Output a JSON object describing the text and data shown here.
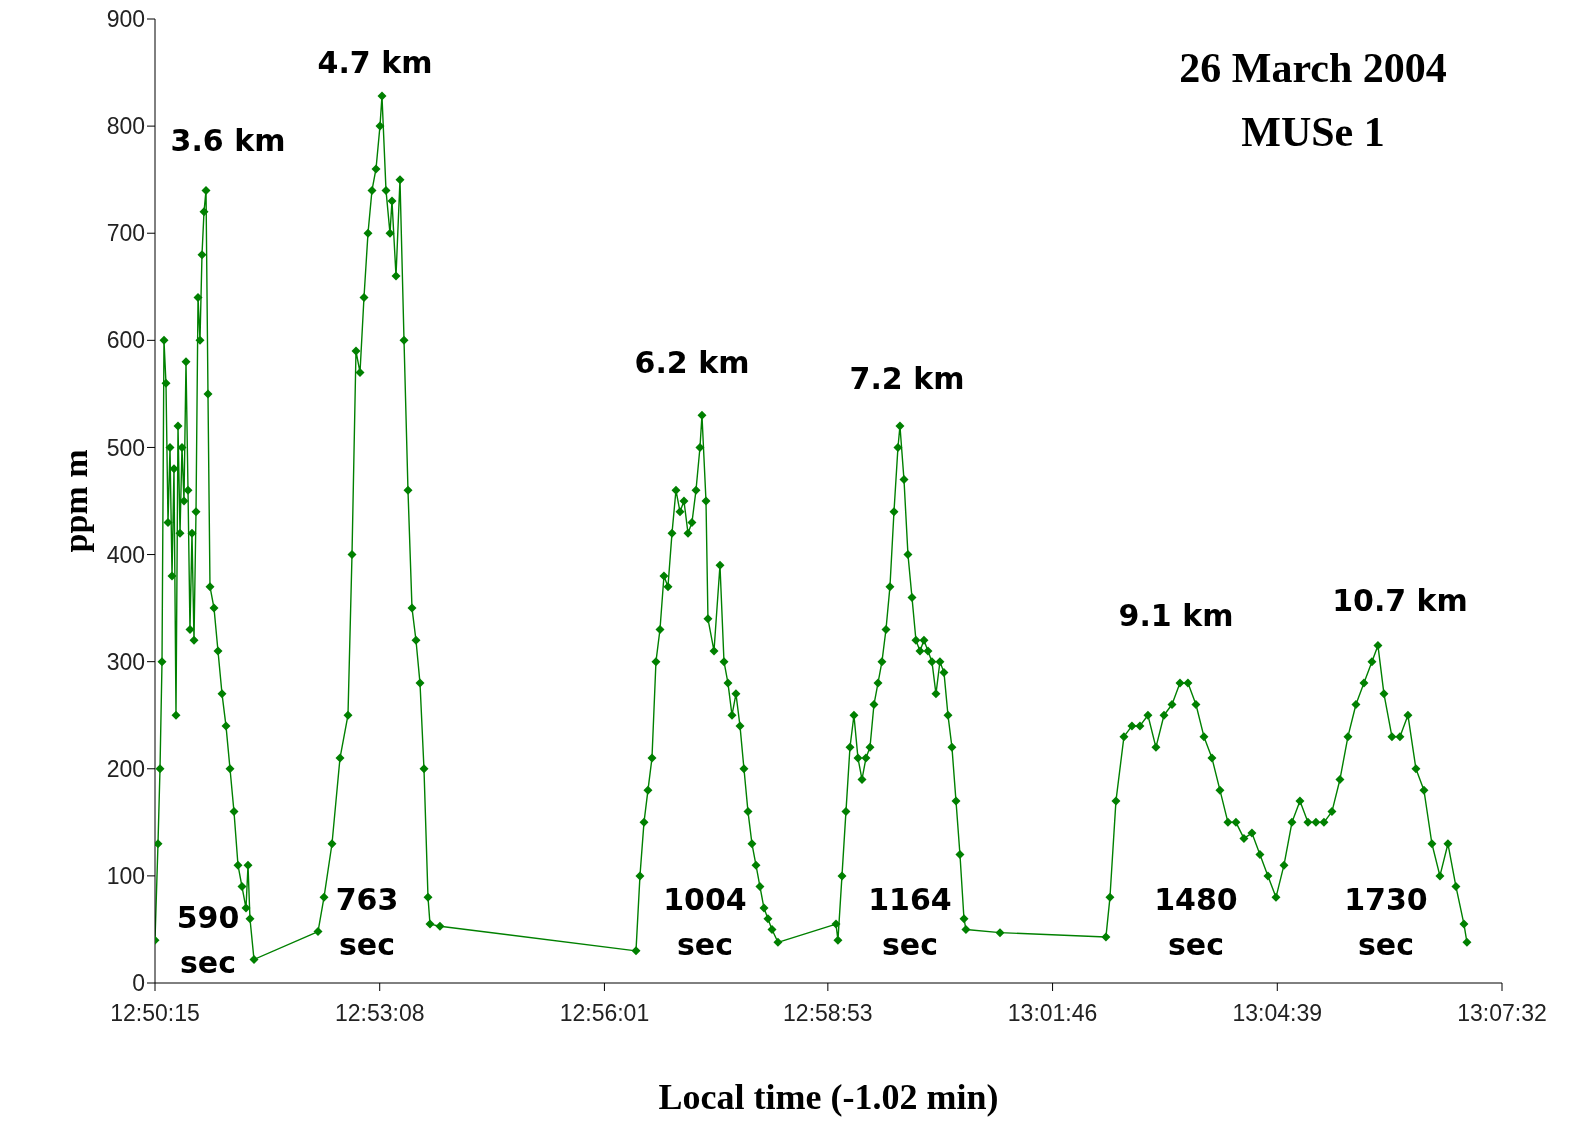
{
  "chart_data": {
    "type": "line",
    "title": "26 March 2004",
    "subtitle": "MUSe 1",
    "xlabel": "Local time (-1.02 min)",
    "ylabel": "ppm m",
    "xlim": [
      12.8375,
      13.125556
    ],
    "ylim": [
      0,
      900
    ],
    "xticks": [
      {
        "value": 12.8375,
        "label": "12:50:15"
      },
      {
        "value": 12.885556,
        "label": "12:53:08"
      },
      {
        "value": 12.933611,
        "label": "12:56:01"
      },
      {
        "value": 12.981389,
        "label": "12:58:53"
      },
      {
        "value": 13.029444,
        "label": "13:01:46"
      },
      {
        "value": 13.0775,
        "label": "13:04:39"
      },
      {
        "value": 13.125556,
        "label": "13:07:32"
      }
    ],
    "yticks": [
      0,
      100,
      200,
      300,
      400,
      500,
      600,
      700,
      800,
      900
    ],
    "grid": false,
    "marker": "diamond",
    "line_style": "solid",
    "x": [
      12.8375,
      12.83814,
      12.83857,
      12.839,
      12.83942,
      12.83985,
      12.84028,
      12.84071,
      12.84114,
      12.84156,
      12.84199,
      12.84242,
      12.84285,
      12.84327,
      12.8437,
      12.84413,
      12.84456,
      12.84498,
      12.84541,
      12.84584,
      12.84627,
      12.8467,
      12.84712,
      12.84755,
      12.84798,
      12.84841,
      12.84883,
      12.84926,
      12.85012,
      12.85097,
      12.85183,
      12.85268,
      12.85354,
      12.85439,
      12.85525,
      12.8561,
      12.85696,
      12.85739,
      12.85781,
      12.85867,
      12.87236,
      12.87364,
      12.87535,
      12.87706,
      12.87877,
      12.87963,
      12.88048,
      12.88134,
      12.88219,
      12.88305,
      12.8839,
      12.88476,
      12.88561,
      12.88604,
      12.8869,
      12.88775,
      12.88818,
      12.88904,
      12.88989,
      12.89075,
      12.8916,
      12.89246,
      12.89331,
      12.89417,
      12.89502,
      12.89588,
      12.89631,
      12.89844,
      12.94036,
      12.94121,
      12.94207,
      12.94292,
      12.94378,
      12.94463,
      12.94549,
      12.94634,
      12.9472,
      12.94806,
      12.94891,
      12.94977,
      12.95062,
      12.95148,
      12.95233,
      12.95319,
      12.95404,
      12.95447,
      12.95533,
      12.95575,
      12.95704,
      12.95832,
      12.95918,
      12.96003,
      12.96089,
      12.96174,
      12.9626,
      12.96345,
      12.96431,
      12.96516,
      12.96602,
      12.96687,
      12.96773,
      12.96858,
      12.96944,
      12.97072,
      12.98313,
      12.98355,
      12.98441,
      12.98526,
      12.98612,
      12.98697,
      12.98783,
      12.98869,
      12.98954,
      12.9904,
      12.99125,
      12.99211,
      12.99296,
      12.99382,
      12.99467,
      12.99553,
      12.99638,
      12.99681,
      12.99767,
      12.99852,
      12.99938,
      13.00023,
      13.00109,
      13.00194,
      13.0028,
      13.00365,
      13.00451,
      13.00536,
      13.00622,
      13.00708,
      13.00793,
      13.00879,
      13.00964,
      13.0105,
      13.01092,
      13.0182,
      13.04086,
      13.04172,
      13.043,
      13.04471,
      13.04642,
      13.04813,
      13.04984,
      13.05155,
      13.05327,
      13.05498,
      13.05669,
      13.0584,
      13.06011,
      13.06182,
      13.06353,
      13.06524,
      13.06695,
      13.06866,
      13.07037,
      13.07208,
      13.07379,
      13.0755,
      13.07722,
      13.07893,
      13.08064,
      13.08235,
      13.08406,
      13.08577,
      13.08748,
      13.08919,
      13.0909,
      13.09261,
      13.09432,
      13.09603,
      13.09774,
      13.09903,
      13.10031,
      13.10202,
      13.10373,
      13.10544,
      13.10715,
      13.10886,
      13.11057,
      13.11228,
      13.114,
      13.11571,
      13.11742,
      13.11806
    ],
    "series": [
      {
        "color": "#008000",
        "values": [
          40,
          130,
          200,
          300,
          600,
          560,
          430,
          500,
          380,
          480,
          250,
          520,
          420,
          500,
          450,
          580,
          460,
          330,
          420,
          320,
          440,
          640,
          600,
          680,
          720,
          740,
          550,
          370,
          350,
          310,
          270,
          240,
          200,
          160,
          110,
          90,
          70,
          110,
          60,
          22,
          48,
          80,
          130,
          210,
          250,
          400,
          590,
          570,
          640,
          700,
          740,
          760,
          800,
          828,
          740,
          700,
          730,
          660,
          750,
          600,
          460,
          350,
          320,
          280,
          200,
          80,
          55,
          53,
          30,
          100,
          150,
          180,
          210,
          300,
          330,
          380,
          370,
          420,
          460,
          440,
          450,
          420,
          430,
          460,
          500,
          530,
          450,
          340,
          310,
          390,
          300,
          280,
          250,
          270,
          240,
          200,
          160,
          130,
          110,
          90,
          70,
          60,
          50,
          38,
          55,
          40,
          100,
          160,
          220,
          250,
          210,
          190,
          210,
          220,
          260,
          280,
          300,
          330,
          370,
          440,
          500,
          520,
          470,
          400,
          360,
          320,
          310,
          320,
          310,
          300,
          270,
          300,
          290,
          250,
          220,
          170,
          120,
          60,
          50,
          47,
          43,
          80,
          170,
          230,
          240,
          240,
          250,
          220,
          250,
          260,
          280,
          280,
          260,
          230,
          210,
          180,
          150,
          150,
          135,
          140,
          120,
          100,
          80,
          110,
          150,
          170,
          150,
          150,
          150,
          160,
          190,
          230,
          260,
          280,
          300,
          315,
          270,
          230,
          230,
          250,
          200,
          180,
          130,
          100,
          130,
          90,
          55,
          38
        ]
      }
    ],
    "annotations": [
      "3.6 km",
      "4.7 km",
      "6.2 km",
      "7.2 km",
      "9.1 km",
      "10.7 km",
      "590\nsec",
      "763\nsec",
      "1004\nsec",
      "1164\nsec",
      "1480\nsec",
      "1730\nsec"
    ]
  }
}
